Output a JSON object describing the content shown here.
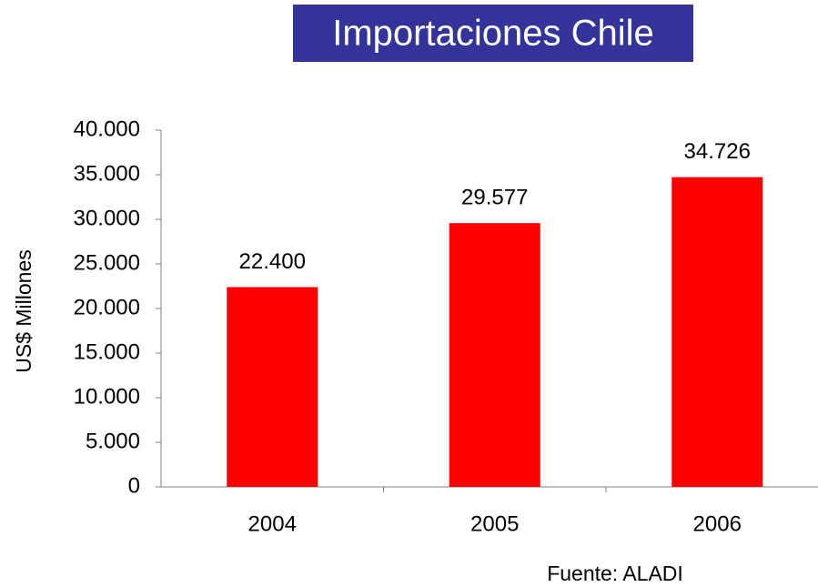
{
  "chart_data": {
    "type": "bar",
    "title": "Importaciones Chile",
    "y_label": "US$ Millones",
    "categories": [
      "2004",
      "2005",
      "2006"
    ],
    "values": [
      22400,
      29577,
      34726
    ],
    "value_labels": [
      "22.400",
      "29.577",
      "34.726"
    ],
    "color": "#ff0000",
    "ylim": [
      0,
      40000
    ],
    "yticks": [
      0,
      {
        "value": 5000,
        "label": "5.000"
      },
      {
        "value": 10000,
        "label": "10.000"
      },
      {
        "value": 15000,
        "label": "15.000"
      },
      {
        "value": 20000,
        "label": "20.000"
      },
      {
        "value": 25000,
        "label": "25.000"
      },
      {
        "value": 30000,
        "label": "30.000"
      },
      {
        "value": 35000,
        "label": "35.000"
      },
      {
        "value": 40000,
        "label": "40.000"
      }
    ],
    "grid": false,
    "source": "Fuente: ALADI"
  }
}
